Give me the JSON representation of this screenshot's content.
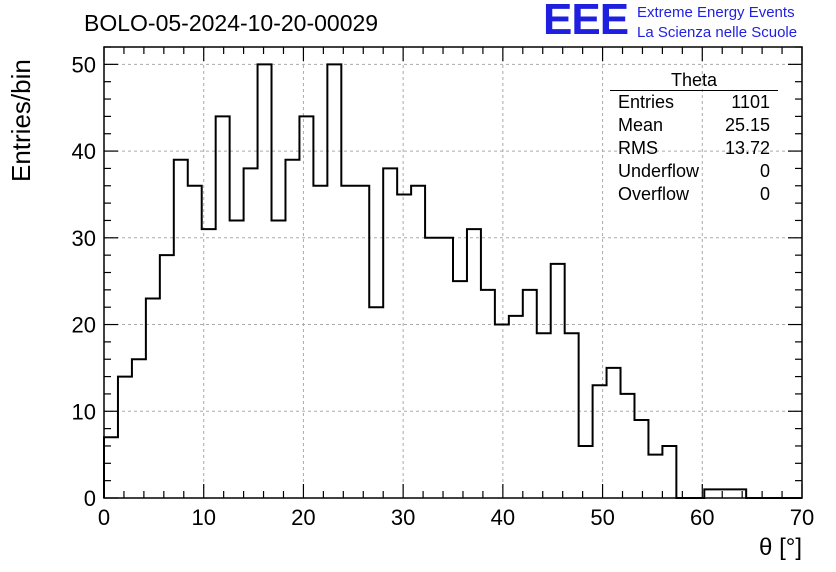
{
  "header": {
    "title": "BOLO-05-2024-10-20-00029",
    "logo_text": "EEE",
    "brand_line1": "Extreme Energy Events",
    "brand_line2": "La Scienza nelle Scuole"
  },
  "stats_box": {
    "title": "Theta",
    "rows": [
      {
        "label": "Entries",
        "value": "1101"
      },
      {
        "label": "Mean",
        "value": "25.15"
      },
      {
        "label": "RMS",
        "value": "13.72"
      },
      {
        "label": "Underflow",
        "value": "0"
      },
      {
        "label": "Overflow",
        "value": "0"
      }
    ]
  },
  "colors": {
    "accent": "#1f1fe0",
    "line": "#000000",
    "grid": "#aaaaaa"
  },
  "chart_data": {
    "type": "histogram",
    "title": "BOLO-05-2024-10-20-00029",
    "xlabel": "θ [°]",
    "ylabel": "Entries/bin",
    "xlim": [
      0,
      70
    ],
    "ylim": [
      0,
      52
    ],
    "bin_width": 1.4,
    "x_ticks": [
      0,
      10,
      20,
      30,
      40,
      50,
      60,
      70
    ],
    "y_ticks": [
      0,
      10,
      20,
      30,
      40,
      50
    ],
    "grid": true,
    "values": [
      7,
      14,
      16,
      23,
      28,
      39,
      36,
      31,
      44,
      32,
      38,
      50,
      32,
      39,
      44,
      36,
      50,
      36,
      36,
      22,
      38,
      35,
      36,
      30,
      30,
      25,
      31,
      24,
      20,
      21,
      24,
      19,
      27,
      19,
      6,
      13,
      15,
      12,
      9,
      5,
      6,
      0,
      0,
      1,
      1,
      1,
      0,
      0,
      0,
      0
    ]
  }
}
